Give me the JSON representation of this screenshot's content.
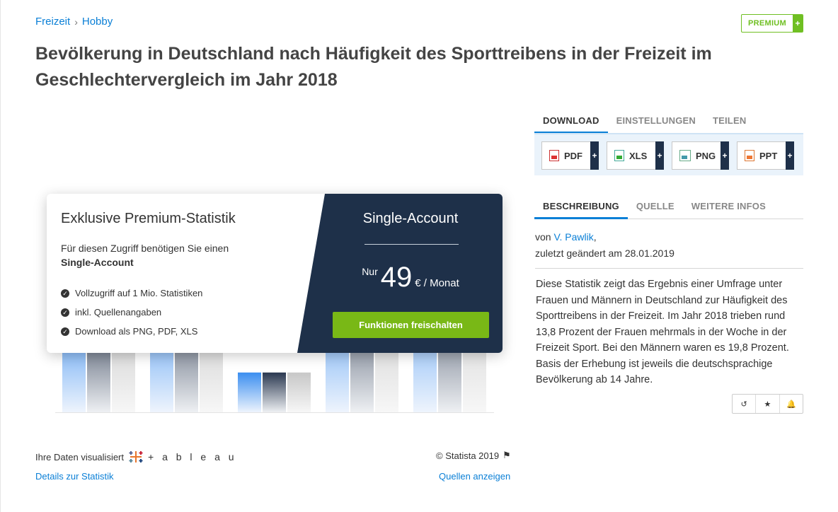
{
  "breadcrumb": {
    "items": [
      "Freizeit",
      "Hobby"
    ],
    "separator": "›"
  },
  "premium_badge": {
    "label": "PREMIUM",
    "plus": "+"
  },
  "title": "Bevölkerung in Deutschland nach Häufigkeit des Sporttreibens in der Freizeit im Geschlechtervergleich im Jahr 2018",
  "paywall": {
    "title": "Exklusive Premium-Statistik",
    "desc_line1": "Für diesen Zugriff benötigen Sie einen",
    "desc_bold": "Single-Account",
    "features": [
      "Vollzugriff auf 1 Mio. Statistiken",
      "inkl. Quellenangaben",
      "Download als PNG, PDF, XLS"
    ],
    "account_title": "Single-Account",
    "price_prefix": "Nur",
    "price_amount": "49",
    "price_suffix": "€ / Monat",
    "cta": "Funktionen freischalten"
  },
  "footer": {
    "viz_credit": "Ihre Daten visualisiert",
    "tableau_word": "+ a b l e a u",
    "details_link": "Details zur Statistik",
    "copyright": "© Statista 2019",
    "sources_link": "Quellen anzeigen"
  },
  "tabs_download": [
    {
      "label": "DOWNLOAD",
      "active": true
    },
    {
      "label": "EINSTELLUNGEN",
      "active": false
    },
    {
      "label": "TEILEN",
      "active": false
    }
  ],
  "downloads": [
    {
      "label": "PDF",
      "icon": "pdf-file-icon"
    },
    {
      "label": "XLS",
      "icon": "xls-file-icon"
    },
    {
      "label": "PNG",
      "icon": "png-file-icon"
    },
    {
      "label": "PPT",
      "icon": "ppt-file-icon"
    }
  ],
  "tabs_info": [
    {
      "label": "BESCHREIBUNG",
      "active": true
    },
    {
      "label": "QUELLE",
      "active": false
    },
    {
      "label": "WEITERE INFOS",
      "active": false
    }
  ],
  "author": {
    "prefix": "von",
    "name": "V. Pawlik",
    "suffix": ",",
    "changed": "zuletzt geändert am 28.01.2019"
  },
  "description": "Diese Statistik zeigt das Ergebnis einer Umfrage unter Frauen und Männern in Deutschland zur Häufigkeit des Sporttreibens in der Freizeit. Im Jahr 2018 trieben rund 13,8 Prozent der Frauen mehrmals in der Woche in der Freizeit Sport. Bei den Männern waren es 19,8 Prozent. Basis der Erhebung ist jeweils die deutschsprachige Bevölkerung ab 14 Jahre.",
  "actions": [
    {
      "name": "history-icon",
      "glyph": "↺"
    },
    {
      "name": "star-icon",
      "glyph": "★"
    },
    {
      "name": "bell-icon",
      "glyph": "🔔"
    }
  ],
  "colors": {
    "accent": "#0a7fd6",
    "cta": "#79b816",
    "dark": "#1e3049"
  },
  "chart_data": {
    "type": "bar",
    "note": "blurred preview behind paywall",
    "series": [
      {
        "values": [
          25,
          29,
          9,
          32,
          36
        ]
      },
      {
        "values": [
          24,
          28,
          9,
          31,
          33
        ]
      },
      {
        "values": [
          24,
          25,
          9,
          29,
          34
        ]
      }
    ],
    "colors": [
      "#3b8ef0",
      "#3d4a5e",
      "#cfcfcf"
    ]
  }
}
